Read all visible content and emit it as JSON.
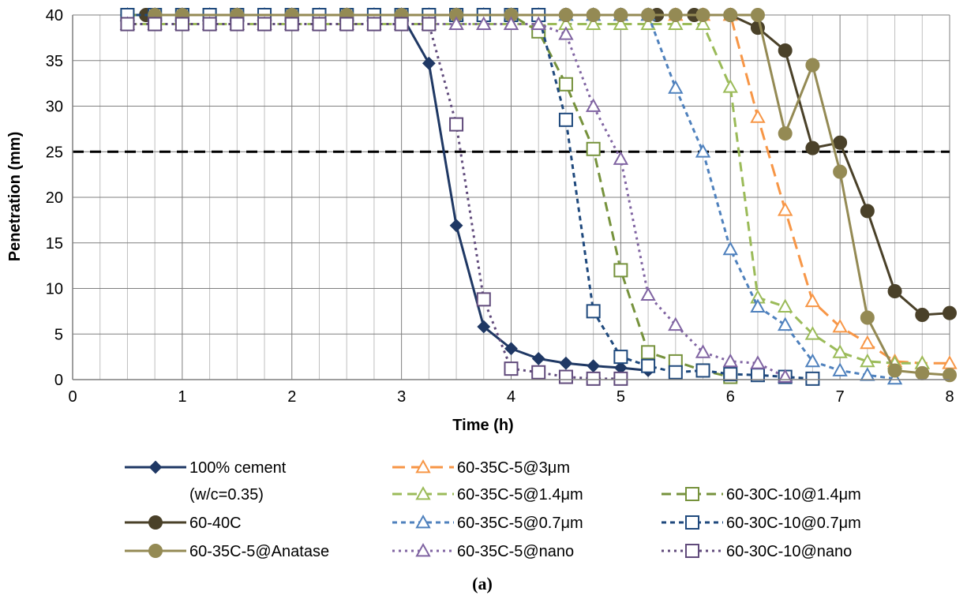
{
  "chart_data": {
    "type": "line",
    "caption": "(a)",
    "xlabel": "Time (h)",
    "ylabel": "Penetration (mm)",
    "xlim": [
      0,
      8
    ],
    "ylim": [
      0,
      40
    ],
    "x_ticks": [
      0,
      1,
      2,
      3,
      4,
      5,
      6,
      7,
      8
    ],
    "y_ticks": [
      0,
      5,
      10,
      15,
      20,
      25,
      30,
      35,
      40
    ],
    "grid": true,
    "minor_x_step": 0.25,
    "reference_line": {
      "y": 25,
      "style": "dashed",
      "color": "#000000"
    },
    "legend_position": "bottom",
    "series": [
      {
        "name": "100% cement",
        "name_line2": "(w/c=0.35)",
        "color": "#1F3864",
        "dash": "solid",
        "marker": "diamond",
        "marker_fill": "filled",
        "x": [
          0.5,
          0.75,
          1,
          1.25,
          1.5,
          1.75,
          2,
          2.25,
          2.5,
          2.75,
          3,
          3.25,
          3.5,
          3.75,
          4,
          4.25,
          4.5,
          4.75,
          5,
          5.25
        ],
        "y": [
          40,
          40,
          40,
          40,
          40,
          40,
          40,
          40,
          40,
          40,
          40,
          34.7,
          16.9,
          5.8,
          3.4,
          2.3,
          1.8,
          1.5,
          1.3,
          1.0
        ]
      },
      {
        "name": "60-35C-5@3μm",
        "color": "#F79646",
        "dash": "longdash",
        "marker": "triangle",
        "marker_fill": "open",
        "x": [
          0.5,
          0.75,
          1,
          1.25,
          1.5,
          1.75,
          2,
          2.25,
          2.5,
          2.75,
          3,
          3.25,
          3.5,
          3.75,
          4,
          4.25,
          4.5,
          4.75,
          5,
          5.25,
          5.5,
          5.75,
          6,
          6.25,
          6.5,
          6.75,
          7,
          7.25,
          7.5,
          7.75,
          8
        ],
        "y": [
          40,
          40,
          40,
          40,
          40,
          40,
          40,
          40,
          40,
          40,
          40,
          40,
          40,
          40,
          40,
          40,
          40,
          40,
          40,
          40,
          40,
          40,
          40,
          28.8,
          18.6,
          8.6,
          5.8,
          4.0,
          2.0,
          1.8,
          1.8
        ]
      },
      {
        "name": "60-35C-5@1.4μm",
        "color": "#9BBB59",
        "dash": "dash",
        "marker": "triangle",
        "marker_fill": "open",
        "x": [
          0.5,
          0.75,
          1,
          1.25,
          1.5,
          1.75,
          2,
          2.25,
          2.5,
          2.75,
          3,
          3.25,
          3.5,
          3.75,
          4,
          4.25,
          4.5,
          4.75,
          5,
          5.25,
          5.5,
          5.75,
          6,
          6.25,
          6.5,
          6.75,
          7,
          7.25,
          7.5,
          7.75
        ],
        "y": [
          39,
          39,
          39,
          39,
          39,
          39,
          39,
          39,
          39,
          39,
          39,
          39,
          39,
          39,
          39,
          39,
          39,
          39,
          39,
          39,
          39,
          39,
          32.1,
          9.0,
          8.0,
          5.0,
          3.0,
          2.0,
          1.8,
          1.8
        ]
      },
      {
        "name": "60-30C-10@1.4μm",
        "color": "#76923C",
        "dash": "dash",
        "marker": "square",
        "marker_fill": "open",
        "x": [
          0.5,
          0.75,
          1,
          1.25,
          1.5,
          1.75,
          2,
          2.25,
          2.5,
          2.75,
          3,
          3.25,
          3.5,
          3.75,
          4,
          4.25,
          4.5,
          4.75,
          5,
          5.25,
          5.5,
          5.75,
          6
        ],
        "y": [
          40,
          40,
          40,
          40,
          40,
          40,
          40,
          40,
          40,
          40,
          40,
          40,
          40,
          40,
          40,
          38.2,
          32.4,
          25.3,
          12.0,
          3.0,
          2.0,
          1.0,
          0.3
        ]
      },
      {
        "name": "60-40C",
        "color": "#4A4129",
        "dash": "solid",
        "marker": "circle",
        "marker_fill": "filled",
        "x": [
          0.67,
          1,
          1.5,
          2,
          2.5,
          3,
          3.5,
          4,
          4.5,
          5,
          5.33,
          5.67,
          6,
          6.25,
          6.5,
          6.75,
          7,
          7.25,
          7.5,
          7.75,
          8
        ],
        "y": [
          40,
          40,
          40,
          40,
          40,
          40,
          40,
          40,
          40,
          40,
          40,
          40,
          40,
          38.6,
          36.1,
          25.4,
          26.0,
          18.5,
          9.7,
          7.1,
          7.3
        ]
      },
      {
        "name": "60-35C-5@0.7μm",
        "color": "#4F81BD",
        "dash": "shortdash",
        "marker": "triangle",
        "marker_fill": "open",
        "x": [
          0.5,
          0.75,
          1,
          1.25,
          1.5,
          1.75,
          2,
          2.25,
          2.5,
          2.75,
          3,
          3.25,
          3.5,
          3.75,
          4,
          4.25,
          4.5,
          4.75,
          5,
          5.25,
          5.5,
          5.75,
          6,
          6.25,
          6.5,
          6.75,
          7,
          7.25,
          7.5
        ],
        "y": [
          40,
          40,
          40,
          40,
          40,
          40,
          40,
          40,
          40,
          40,
          40,
          40,
          40,
          40,
          40,
          40,
          40,
          40,
          40,
          40,
          32.0,
          25.0,
          14.3,
          8.0,
          6.0,
          2.0,
          1.0,
          0.5,
          0.1
        ]
      },
      {
        "name": "60-30C-10@0.7μm",
        "color": "#1F497D",
        "dash": "shortdash",
        "marker": "square",
        "marker_fill": "open",
        "x": [
          0.5,
          0.75,
          1,
          1.25,
          1.5,
          1.75,
          2,
          2.25,
          2.5,
          2.75,
          3,
          3.25,
          3.5,
          3.75,
          4,
          4.25,
          4.5,
          4.75,
          5,
          5.25,
          5.5,
          5.75,
          6,
          6.25,
          6.5,
          6.75
        ],
        "y": [
          40,
          40,
          40,
          40,
          40,
          40,
          40,
          40,
          40,
          40,
          40,
          40,
          40,
          40,
          40,
          40,
          28.5,
          7.5,
          2.5,
          1.5,
          0.8,
          1.0,
          0.6,
          0.5,
          0.3,
          0.1
        ]
      },
      {
        "name": "60-35C-5@Anatase",
        "color": "#948A54",
        "dash": "solid",
        "marker": "circle",
        "marker_fill": "filled",
        "x": [
          0.75,
          1,
          1.5,
          2,
          2.5,
          3,
          3.5,
          4,
          4.5,
          4.75,
          5,
          5.25,
          5.5,
          5.75,
          6,
          6.25,
          6.5,
          6.75,
          7,
          7.25,
          7.5,
          7.75,
          8
        ],
        "y": [
          40,
          40,
          40,
          40,
          40,
          40,
          40,
          40,
          40,
          40,
          40,
          40,
          40,
          40,
          40,
          40,
          27.0,
          34.5,
          22.8,
          6.8,
          1.0,
          0.7,
          0.5
        ]
      },
      {
        "name": "60-35C-5@nano",
        "color": "#8064A2",
        "dash": "dot",
        "marker": "triangle",
        "marker_fill": "open",
        "x": [
          0.5,
          0.75,
          1,
          1.25,
          1.5,
          1.75,
          2,
          2.25,
          2.5,
          2.75,
          3,
          3.25,
          3.5,
          3.75,
          4,
          4.25,
          4.5,
          4.75,
          5,
          5.25,
          5.5,
          5.75,
          6,
          6.25,
          6.5
        ],
        "y": [
          39,
          39,
          39,
          39,
          39,
          39,
          39,
          39,
          39,
          39,
          39,
          39,
          39,
          39,
          39,
          39,
          37.9,
          30.0,
          24.2,
          9.3,
          6.0,
          3.0,
          2.0,
          1.8,
          0.3
        ]
      },
      {
        "name": "60-30C-10@nano",
        "color": "#604A7B",
        "dash": "dot",
        "marker": "square",
        "marker_fill": "open",
        "x": [
          0.5,
          0.75,
          1,
          1.25,
          1.5,
          1.75,
          2,
          2.25,
          2.5,
          2.75,
          3,
          3.25,
          3.5,
          3.75,
          4,
          4.25,
          4.5,
          4.75,
          5
        ],
        "y": [
          39,
          39,
          39,
          39,
          39,
          39,
          39,
          39,
          39,
          39,
          39,
          39,
          28.0,
          8.8,
          1.2,
          0.8,
          0.3,
          0.1,
          0.1
        ]
      }
    ],
    "legend_order": [
      [
        0,
        1,
        null
      ],
      [
        null,
        2,
        3
      ],
      [
        4,
        5,
        6
      ],
      [
        7,
        8,
        9
      ]
    ]
  }
}
